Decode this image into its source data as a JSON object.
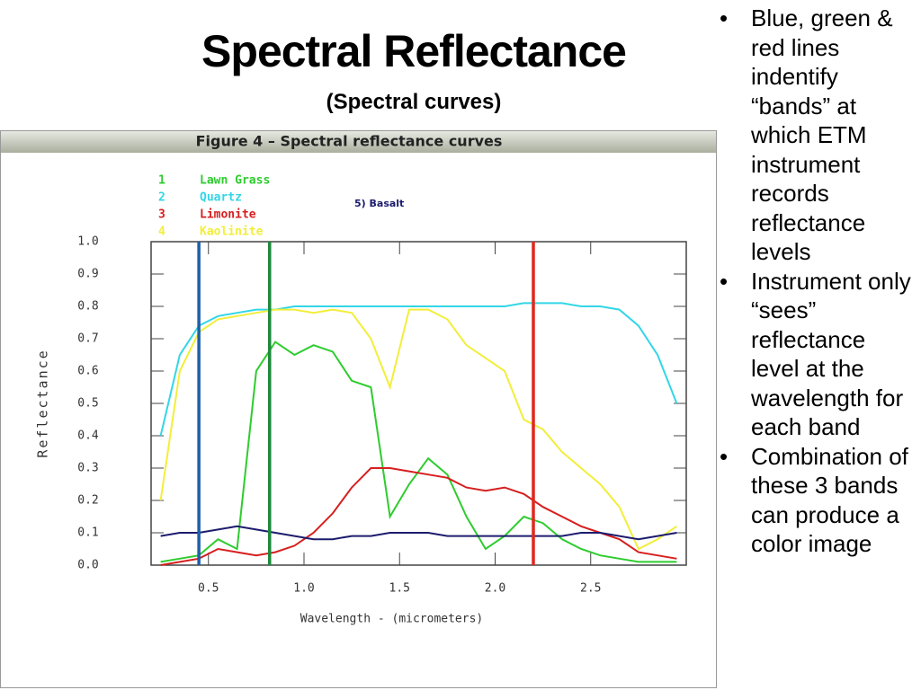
{
  "slide": {
    "title": "Spectral Reflectance",
    "subtitle": "(Spectral curves)",
    "bullets": [
      "Blue, green & red lines indentify “bands” at which ETM instrument records reflectance levels",
      "Instrument only “sees” reflectance level at the wavelength for each band",
      "Combination of these 3 bands can produce a color image"
    ]
  },
  "chart_data": {
    "type": "line",
    "title": "Figure 4 – Spectral reflectance curves",
    "x_label": "Wavelength - (micrometers)",
    "y_label": "Reflectance",
    "x": [
      0.25,
      0.35,
      0.45,
      0.55,
      0.65,
      0.75,
      0.85,
      0.95,
      1.05,
      1.15,
      1.25,
      1.35,
      1.45,
      1.55,
      1.65,
      1.75,
      1.85,
      1.95,
      2.05,
      2.15,
      2.25,
      2.35,
      2.45,
      2.55,
      2.65,
      2.75,
      2.85,
      2.95
    ],
    "series": [
      {
        "number": "1",
        "name": "Lawn Grass",
        "color": "#2ecc2e",
        "values": [
          0.01,
          0.02,
          0.03,
          0.08,
          0.05,
          0.6,
          0.69,
          0.65,
          0.68,
          0.66,
          0.57,
          0.55,
          0.15,
          0.25,
          0.33,
          0.28,
          0.15,
          0.05,
          0.09,
          0.15,
          0.13,
          0.08,
          0.05,
          0.03,
          0.02,
          0.01,
          0.01,
          0.01
        ]
      },
      {
        "number": "2",
        "name": "Quartz",
        "color": "#33d6e6",
        "values": [
          0.4,
          0.65,
          0.74,
          0.77,
          0.78,
          0.79,
          0.79,
          0.8,
          0.8,
          0.8,
          0.8,
          0.8,
          0.8,
          0.8,
          0.8,
          0.8,
          0.8,
          0.8,
          0.8,
          0.81,
          0.81,
          0.81,
          0.8,
          0.8,
          0.79,
          0.74,
          0.65,
          0.5
        ]
      },
      {
        "number": "3",
        "name": "Limonite",
        "color": "#d61f1f",
        "values": [
          0.0,
          0.01,
          0.02,
          0.05,
          0.04,
          0.03,
          0.04,
          0.06,
          0.1,
          0.16,
          0.24,
          0.3,
          0.3,
          0.29,
          0.28,
          0.27,
          0.24,
          0.23,
          0.24,
          0.22,
          0.18,
          0.15,
          0.12,
          0.1,
          0.08,
          0.04,
          0.03,
          0.02
        ]
      },
      {
        "number": "4",
        "name": "Kaolinite",
        "color": "#f2ee3a",
        "values": [
          0.2,
          0.6,
          0.72,
          0.76,
          0.77,
          0.78,
          0.79,
          0.79,
          0.78,
          0.79,
          0.78,
          0.7,
          0.55,
          0.79,
          0.79,
          0.76,
          0.68,
          0.64,
          0.6,
          0.45,
          0.42,
          0.35,
          0.3,
          0.25,
          0.18,
          0.05,
          0.08,
          0.12
        ]
      },
      {
        "name": "5) Basalt",
        "color": "#1c1c6e",
        "values": [
          0.09,
          0.1,
          0.1,
          0.11,
          0.12,
          0.11,
          0.1,
          0.09,
          0.08,
          0.08,
          0.09,
          0.09,
          0.1,
          0.1,
          0.1,
          0.09,
          0.09,
          0.09,
          0.09,
          0.09,
          0.09,
          0.09,
          0.1,
          0.1,
          0.09,
          0.08,
          0.09,
          0.1
        ]
      }
    ],
    "bands": [
      {
        "x": 0.45,
        "color": "#1f5fa8"
      },
      {
        "x": 0.82,
        "color": "#1e8a3a"
      },
      {
        "x": 2.2,
        "color": "#e0281f"
      }
    ],
    "xlim": [
      0.2,
      3.0
    ],
    "ylim": [
      0,
      1
    ],
    "xticks": [
      0.5,
      {
        "value": 1,
        "label": "1.0"
      },
      1.5,
      {
        "value": 2,
        "label": "2.0"
      },
      2.5
    ],
    "yticks": [
      {
        "value": 0,
        "label": "0.0"
      },
      0.1,
      0.2,
      0.3,
      0.4,
      0.5,
      0.6,
      0.7,
      0.8,
      0.9,
      {
        "value": 1,
        "label": "1.0"
      }
    ]
  }
}
